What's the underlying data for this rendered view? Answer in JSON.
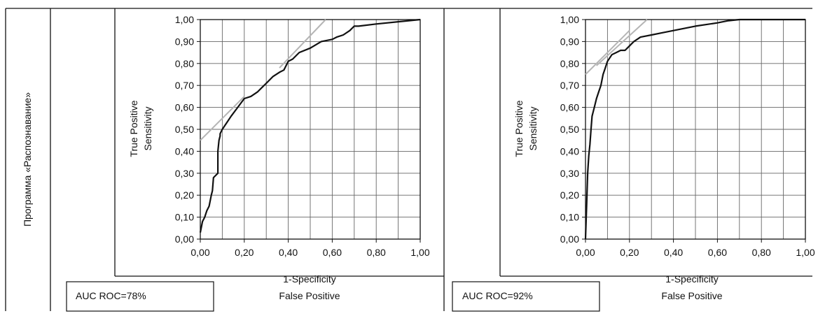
{
  "row_label": "Программа «Распознавание»",
  "panels": [
    {
      "auc_label": "AUC ROC=78%"
    },
    {
      "auc_label": "AUC ROC=92%"
    }
  ],
  "chart_data": [
    {
      "type": "line",
      "ylabel": "True Positive",
      "ylabel2": "Sensitivity",
      "xlabel": "1-Specificity",
      "xlabel2": "False Positive",
      "xlim": [
        0,
        1
      ],
      "ylim": [
        0,
        1
      ],
      "x_ticks": [
        "0,00",
        "0,20",
        "0,40",
        "0,60",
        "0,80",
        "1,00"
      ],
      "y_ticks": [
        "0,00",
        "0,10",
        "0,20",
        "0,30",
        "0,40",
        "0,50",
        "0,60",
        "0,70",
        "0,80",
        "0,90",
        "1,00"
      ],
      "grid": true,
      "colors": {
        "roc": "#111111",
        "diagonal": "#b5b5b5",
        "grid": "#666666"
      },
      "series": [
        {
          "x": [
            0.0,
            0.01,
            0.02,
            0.03,
            0.04,
            0.05,
            0.055,
            0.06,
            0.07,
            0.08,
            0.08,
            0.085,
            0.09,
            0.09,
            0.1,
            0.12,
            0.14,
            0.17,
            0.2,
            0.23,
            0.26,
            0.28,
            0.3,
            0.33,
            0.36,
            0.38,
            0.4,
            0.42,
            0.45,
            0.5,
            0.55,
            0.6,
            0.62,
            0.65,
            0.68,
            0.7,
            0.72,
            0.8,
            0.9,
            1.0
          ],
          "y": [
            0.03,
            0.08,
            0.1,
            0.13,
            0.15,
            0.2,
            0.22,
            0.28,
            0.29,
            0.3,
            0.4,
            0.45,
            0.47,
            0.48,
            0.5,
            0.53,
            0.56,
            0.6,
            0.64,
            0.65,
            0.67,
            0.69,
            0.71,
            0.74,
            0.76,
            0.77,
            0.81,
            0.82,
            0.85,
            0.87,
            0.9,
            0.91,
            0.92,
            0.93,
            0.95,
            0.97,
            0.97,
            0.98,
            0.99,
            1.0
          ]
        },
        {
          "x": [
            0.0,
            0.2
          ],
          "y": [
            0.45,
            0.65
          ]
        },
        {
          "x": [
            0.36,
            0.57
          ],
          "y": [
            0.78,
            1.0
          ]
        }
      ]
    },
    {
      "type": "line",
      "ylabel": "True Positive",
      "ylabel2": "Sensitivity",
      "xlabel": "1-Specificity",
      "xlabel2": "False Positive",
      "xlim": [
        0,
        1
      ],
      "ylim": [
        0,
        1
      ],
      "x_ticks": [
        "0,00",
        "0,20",
        "0,40",
        "0,60",
        "0,80",
        "1,00"
      ],
      "y_ticks": [
        "0,00",
        "0,10",
        "0,20",
        "0,30",
        "0,40",
        "0,50",
        "0,60",
        "0,70",
        "0,80",
        "0,90",
        "1,00"
      ],
      "grid": true,
      "colors": {
        "roc": "#111111",
        "diagonal": "#b5b5b5",
        "grid": "#666666"
      },
      "series": [
        {
          "x": [
            0.0,
            0.005,
            0.01,
            0.015,
            0.02,
            0.025,
            0.03,
            0.035,
            0.04,
            0.05,
            0.06,
            0.07,
            0.08,
            0.09,
            0.1,
            0.12,
            0.14,
            0.16,
            0.18,
            0.2,
            0.22,
            0.25,
            0.3,
            0.35,
            0.4,
            0.5,
            0.6,
            0.65,
            0.7,
            0.8,
            0.9,
            1.0
          ],
          "y": [
            0.0,
            0.15,
            0.3,
            0.38,
            0.43,
            0.5,
            0.56,
            0.58,
            0.6,
            0.64,
            0.67,
            0.7,
            0.75,
            0.78,
            0.81,
            0.84,
            0.85,
            0.86,
            0.86,
            0.88,
            0.9,
            0.92,
            0.93,
            0.94,
            0.95,
            0.97,
            0.985,
            0.995,
            1.0,
            1.0,
            1.0,
            1.0
          ]
        },
        {
          "x": [
            0.0,
            0.2
          ],
          "y": [
            0.75,
            0.95
          ]
        },
        {
          "x": [
            0.05,
            0.28
          ],
          "y": [
            0.79,
            1.0
          ]
        }
      ]
    }
  ]
}
